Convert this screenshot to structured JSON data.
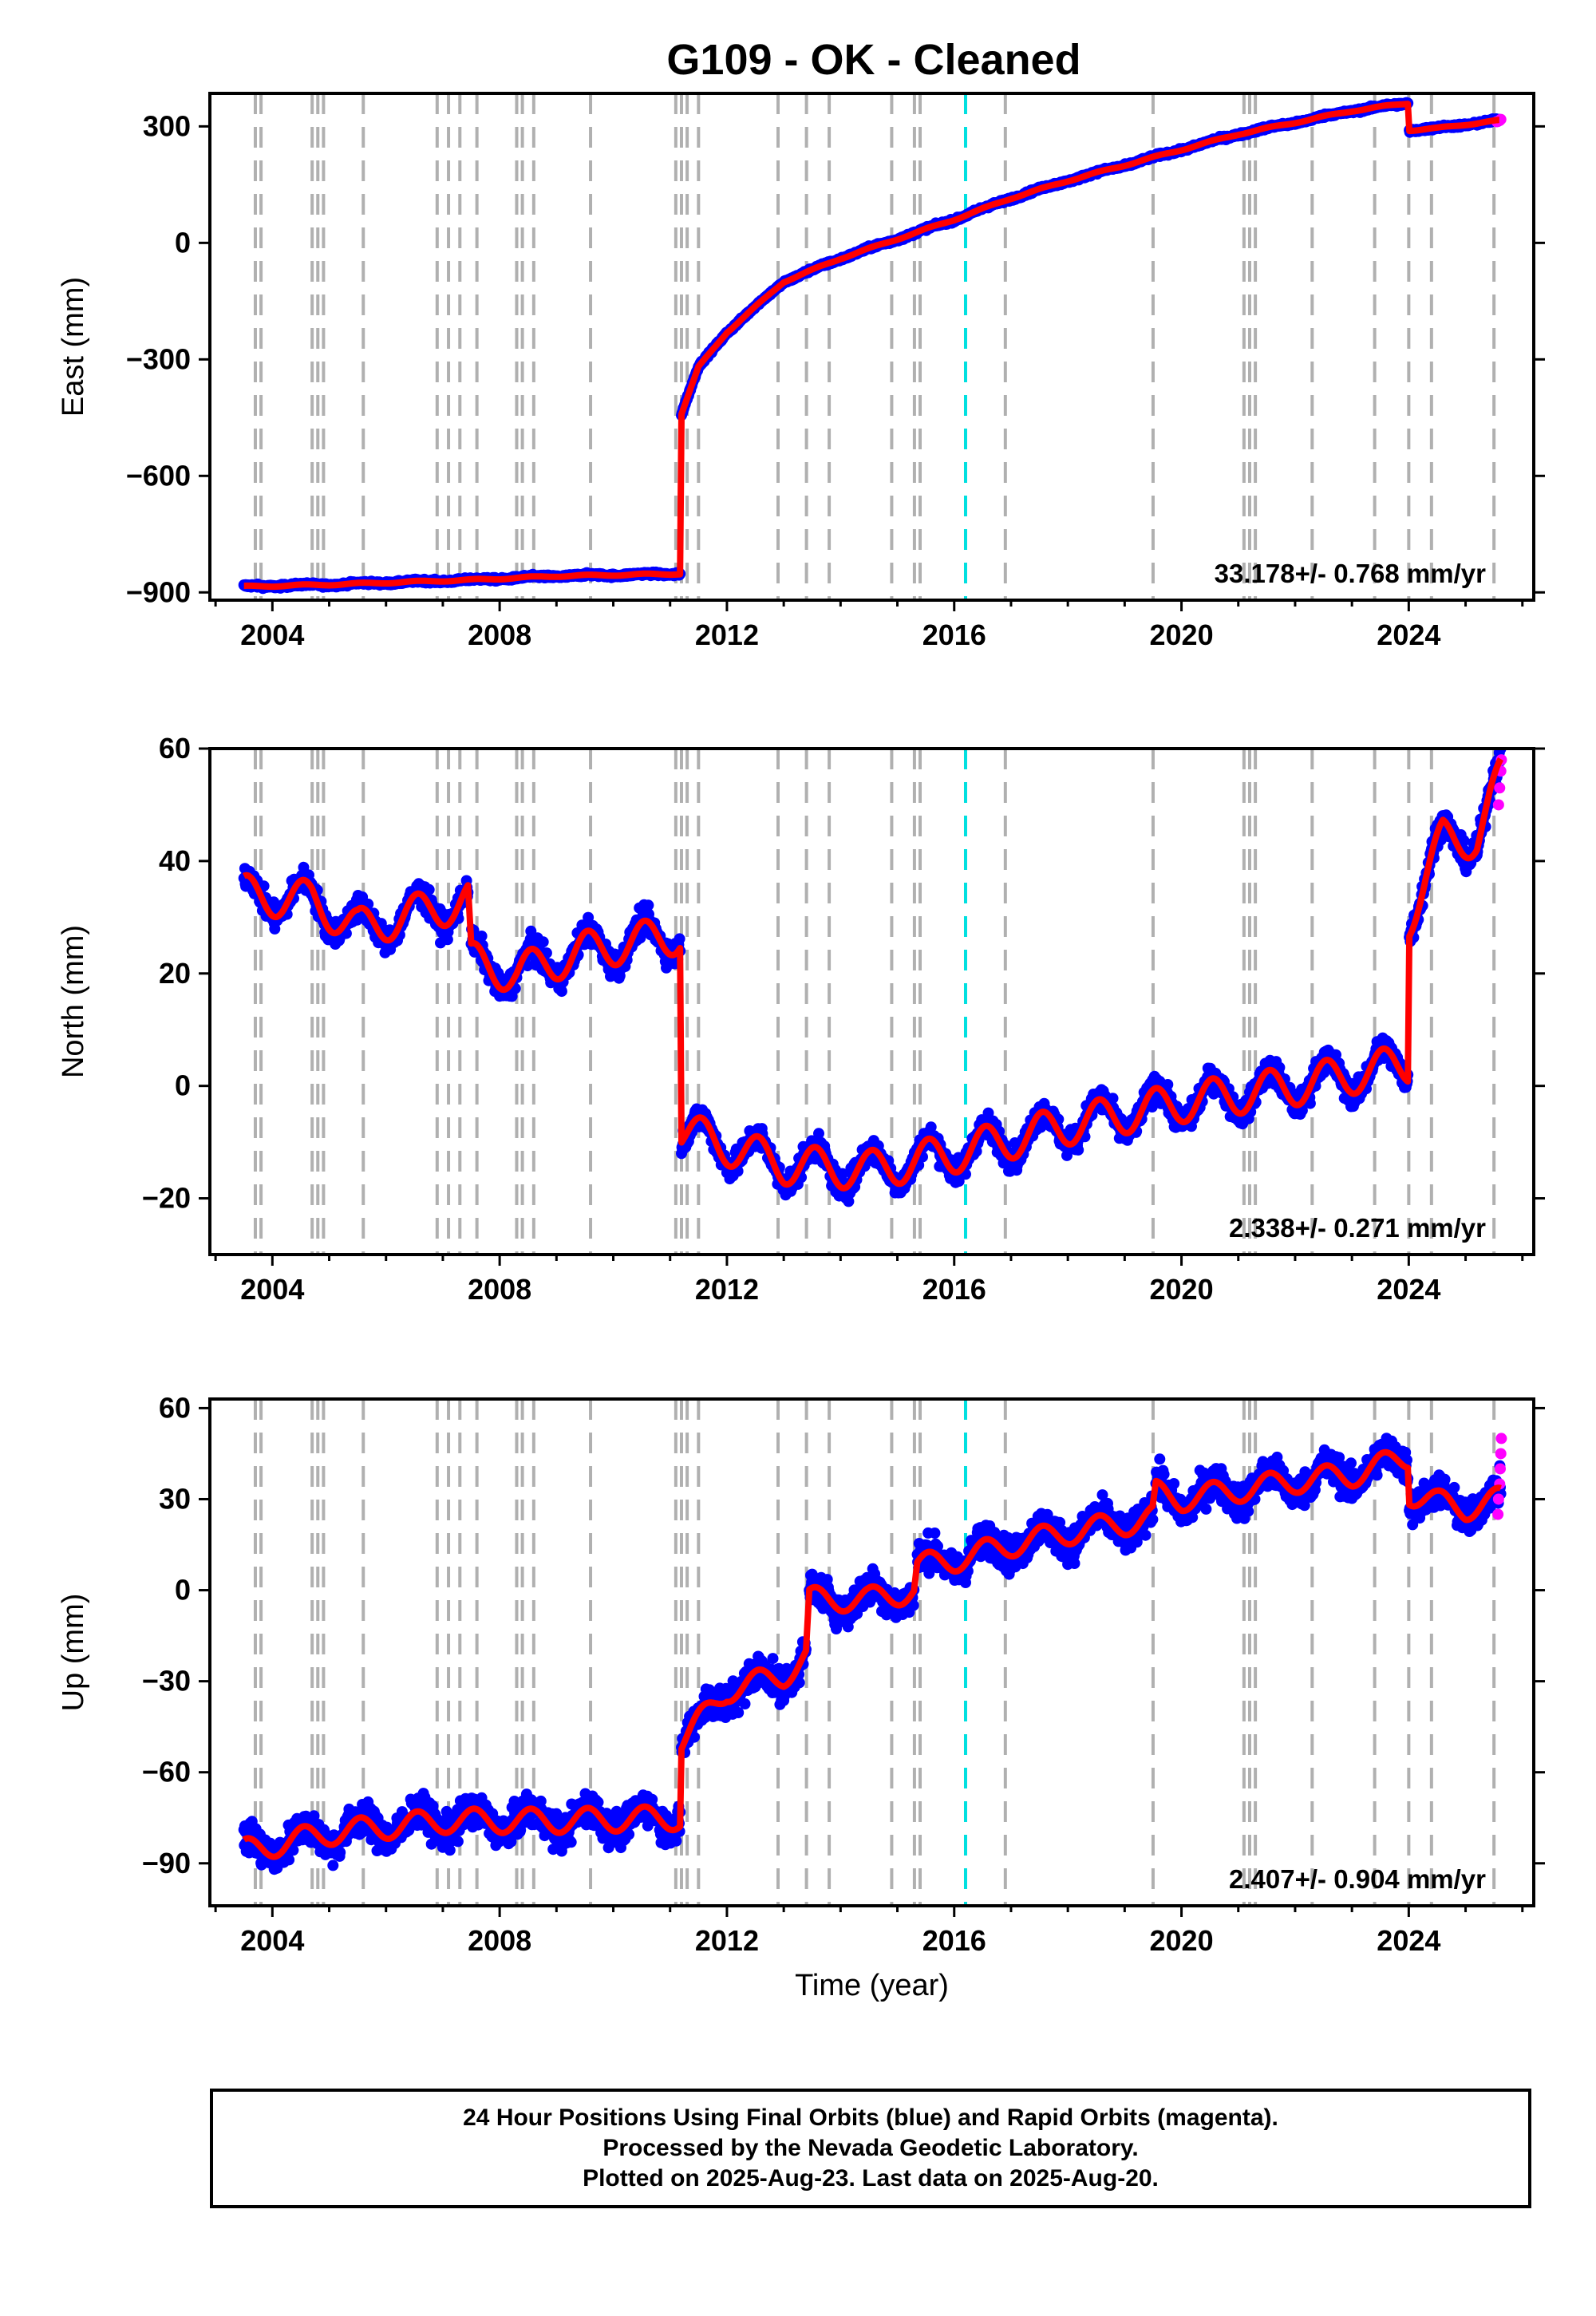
{
  "title": "G109  - OK - Cleaned",
  "colors": {
    "final": "#0000ff",
    "rapid": "#ff00ff",
    "model": "#ff0000",
    "equipment_change": "#b0b0b0",
    "earthquake": "#00e0e0"
  },
  "chart_data": [
    {
      "type": "scatter",
      "ylabel": "East (mm)",
      "xlabel": "",
      "xlim": [
        2002.9,
        2026.2
      ],
      "ylim": [
        -920,
        385
      ],
      "yticks": [
        -900,
        -600,
        -300,
        0,
        300
      ],
      "xticks": [
        2004,
        2008,
        2012,
        2016,
        2020,
        2024
      ],
      "rate": "33.178+/- 0.768 mm/yr",
      "segments": [
        {
          "x": [
            2003.5,
            2005.0,
            2007.0,
            2007.5,
            2009.0,
            2011.18
          ],
          "y": [
            -885,
            -880,
            -870,
            -868,
            -858,
            -852
          ]
        },
        {
          "x": [
            2011.2,
            2011.5,
            2012.0,
            2013.0,
            2014.0,
            2015.0,
            2016.0,
            2017.0,
            2018.0,
            2019.0,
            2020.0,
            2021.0,
            2022.0,
            2023.0,
            2023.99
          ],
          "y": [
            -440,
            -320,
            -230,
            -100,
            -40,
            10,
            60,
            115,
            160,
            200,
            240,
            280,
            310,
            340,
            360
          ]
        },
        {
          "x": [
            2024.01,
            2024.5,
            2025.0,
            2025.6
          ],
          "y": [
            290,
            295,
            305,
            315
          ]
        }
      ],
      "seasonal_amp": 2,
      "noise": 3,
      "rapid_points": {
        "x": [
          2025.55,
          2025.6,
          2025.62
        ],
        "y": [
          312,
          315,
          318
        ]
      }
    },
    {
      "type": "scatter",
      "ylabel": "North (mm)",
      "xlabel": "",
      "xlim": [
        2002.9,
        2026.2
      ],
      "ylim": [
        -30,
        60
      ],
      "yticks": [
        -20,
        0,
        20,
        40,
        60
      ],
      "xticks": [
        2004,
        2008,
        2012,
        2016,
        2020,
        2024
      ],
      "rate": "2.338+/- 0.271 mm/yr",
      "segments": [
        {
          "x": [
            2003.5,
            2004.7,
            2005.5,
            2007.45
          ],
          "y": [
            34,
            33,
            28,
            33
          ]
        },
        {
          "x": [
            2007.5,
            2008.3,
            2009.5,
            2011.18
          ],
          "y": [
            22,
            20,
            24,
            27
          ]
        },
        {
          "x": [
            2011.2,
            2013.0,
            2014.5,
            2016.0,
            2018.0,
            2020.0,
            2022.0,
            2023.99
          ],
          "y": [
            -8,
            -14,
            -15,
            -12,
            -7,
            -3,
            0,
            4
          ]
        },
        {
          "x": [
            2024.01,
            2024.6,
            2025.2,
            2025.62
          ],
          "y": [
            30,
            44,
            44,
            55
          ]
        }
      ],
      "seasonal_amp": 3.5,
      "noise": 1.6,
      "rapid_points": {
        "x": [
          2025.58,
          2025.6,
          2025.62,
          2025.63
        ],
        "y": [
          50,
          53,
          56,
          58
        ]
      }
    },
    {
      "type": "scatter",
      "ylabel": "Up (mm)",
      "xlabel": "Time (year)",
      "xlim": [
        2002.9,
        2026.2
      ],
      "ylim": [
        -104,
        63
      ],
      "yticks": [
        -90,
        -60,
        -30,
        0,
        30,
        60
      ],
      "xticks": [
        2004,
        2008,
        2012,
        2016,
        2020,
        2024
      ],
      "rate": "2.407+/- 0.904 mm/yr",
      "segments": [
        {
          "x": [
            2003.5,
            2005.0,
            2007.0,
            2009.0,
            2011.18
          ],
          "y": [
            -86,
            -80,
            -76,
            -76,
            -75
          ]
        },
        {
          "x": [
            2011.2,
            2012.0,
            2013.0,
            2013.4
          ],
          "y": [
            -50,
            -33,
            -28,
            -22
          ]
        },
        {
          "x": [
            2013.45,
            2014.5,
            2015.3
          ],
          "y": [
            -3,
            -3,
            0
          ]
        },
        {
          "x": [
            2015.35,
            2016.0,
            2017.0,
            2018.0,
            2019.0,
            2019.5
          ],
          "y": [
            8,
            10,
            15,
            19,
            22,
            24
          ]
        },
        {
          "x": [
            2019.55,
            2020.0,
            2021.0,
            2022.0,
            2023.0,
            2023.99
          ],
          "y": [
            32,
            30,
            33,
            36,
            38,
            44
          ]
        },
        {
          "x": [
            2024.01,
            2024.5,
            2025.0,
            2025.62
          ],
          "y": [
            32,
            29,
            27,
            30
          ]
        }
      ],
      "seasonal_amp": 4,
      "noise": 4,
      "rapid_points": {
        "x": [
          2025.57,
          2025.58,
          2025.6,
          2025.61,
          2025.62,
          2025.63
        ],
        "y": [
          25,
          30,
          35,
          40,
          45,
          50
        ]
      }
    }
  ],
  "equipment_changes": [
    2003.7,
    2003.8,
    2004.7,
    2004.8,
    2004.9,
    2005.6,
    2006.9,
    2007.1,
    2007.3,
    2007.6,
    2008.3,
    2008.4,
    2008.6,
    2009.6,
    2011.1,
    2011.2,
    2011.3,
    2011.5,
    2012.9,
    2013.4,
    2013.8,
    2014.9,
    2015.3,
    2015.4,
    2016.9,
    2019.5,
    2021.1,
    2021.2,
    2021.3,
    2022.3,
    2023.4,
    2024.0,
    2024.4,
    2025.5
  ],
  "earthquakes": [
    2016.2
  ],
  "footer": {
    "line1": "24 Hour Positions Using Final Orbits (blue) and Rapid Orbits (magenta).",
    "line2": "Processed by the Nevada Geodetic Laboratory.",
    "line3": "Plotted on 2025-Aug-23. Last data on 2025-Aug-20."
  }
}
